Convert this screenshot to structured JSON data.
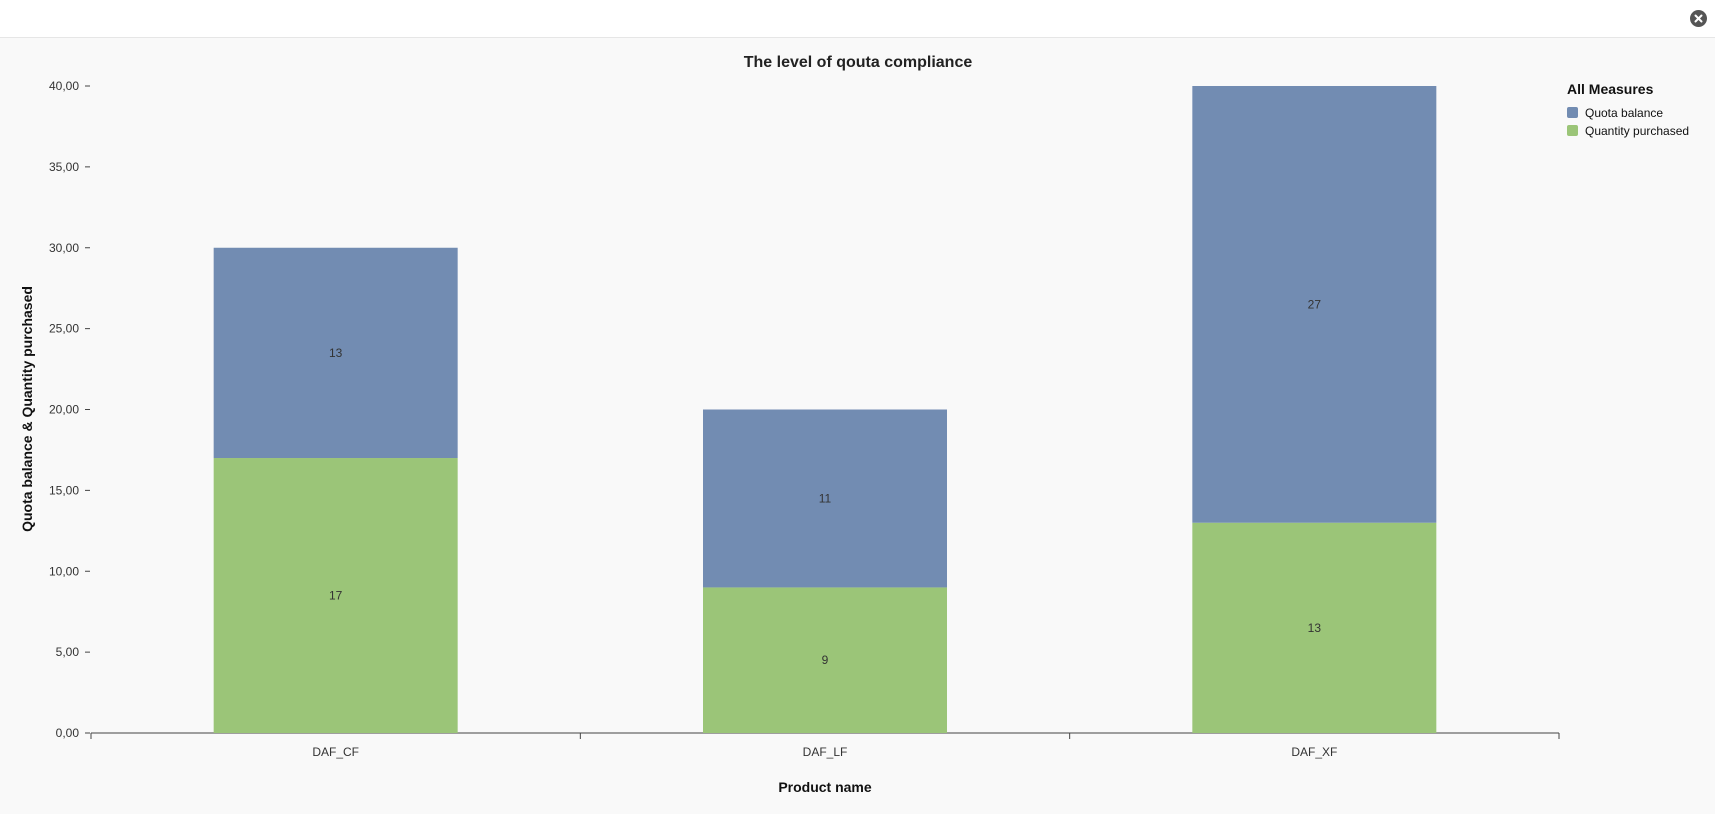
{
  "window": {
    "close_icon": "close-icon"
  },
  "chart_data": {
    "type": "bar",
    "stacked": true,
    "title": "The level of qouta compliance",
    "xlabel": "Product name",
    "ylabel": "Quota balance & Quantity purchased",
    "categories": [
      "DAF_CF",
      "DAF_LF",
      "DAF_XF"
    ],
    "series": [
      {
        "name": "Quantity purchased",
        "values": [
          17,
          9,
          13
        ],
        "color": "#9bc578"
      },
      {
        "name": "Quota balance",
        "values": [
          13,
          11,
          27
        ],
        "color": "#728cb2"
      }
    ],
    "ylim": [
      0,
      40
    ],
    "yticks": [
      "0,00",
      "5,00",
      "10,00",
      "15,00",
      "20,00",
      "25,00",
      "30,00",
      "35,00",
      "40,00"
    ],
    "grid": false,
    "legend": {
      "title": "All Measures",
      "placement": "top-right",
      "entries": [
        "Quota balance",
        "Quantity purchased"
      ]
    }
  }
}
